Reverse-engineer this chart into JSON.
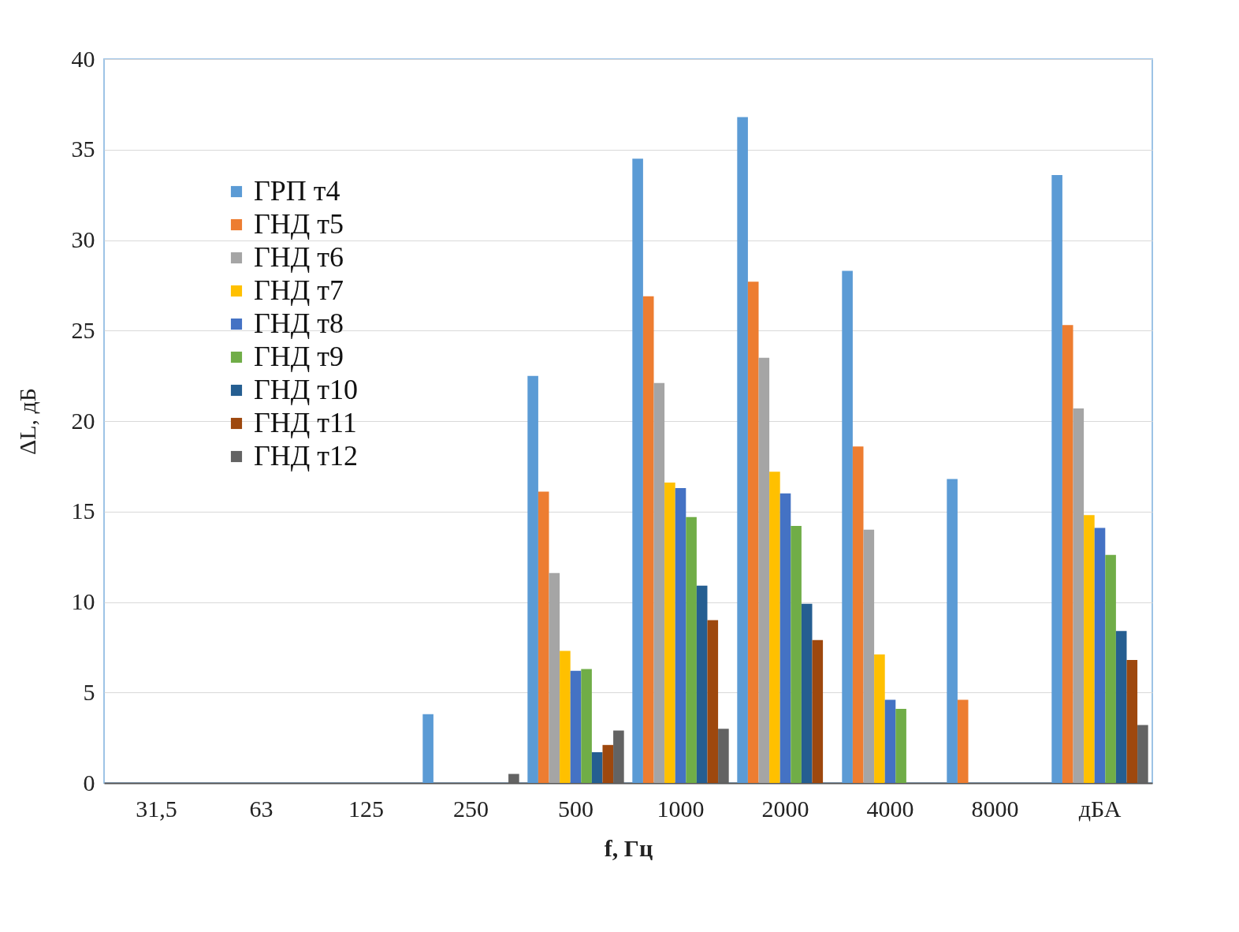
{
  "chart_data": {
    "type": "bar",
    "xlabel": "f, Гц",
    "ylabel": "ΔL, дБ",
    "categories": [
      "31,5",
      "63",
      "125",
      "250",
      "500",
      "1000",
      "2000",
      "4000",
      "8000",
      "дБА"
    ],
    "series": [
      {
        "name": "ГРП т4",
        "color": "#5b9bd5",
        "values": [
          0,
          0,
          0,
          3.8,
          22.5,
          34.5,
          36.8,
          28.3,
          16.8,
          33.6
        ]
      },
      {
        "name": "ГНД т5",
        "color": "#ed7d31",
        "values": [
          0,
          0,
          0,
          0,
          16.1,
          26.9,
          27.7,
          18.6,
          4.6,
          25.3
        ]
      },
      {
        "name": "ГНД т6",
        "color": "#a5a5a5",
        "values": [
          0,
          0,
          0,
          0,
          11.6,
          22.1,
          23.5,
          14.0,
          0,
          20.7
        ]
      },
      {
        "name": "ГНД т7",
        "color": "#ffc000",
        "values": [
          0,
          0,
          0,
          0,
          7.3,
          16.6,
          17.2,
          7.1,
          0,
          14.8
        ]
      },
      {
        "name": "ГНД т8",
        "color": "#4472c4",
        "values": [
          0,
          0,
          0,
          0,
          6.2,
          16.3,
          16.0,
          4.6,
          0,
          14.1
        ]
      },
      {
        "name": "ГНД т9",
        "color": "#70ad47",
        "values": [
          0,
          0,
          0,
          0,
          6.3,
          14.7,
          14.2,
          4.1,
          0,
          12.6
        ]
      },
      {
        "name": "ГНД т10",
        "color": "#255e91",
        "values": [
          0,
          0,
          0,
          0,
          1.7,
          10.9,
          9.9,
          0,
          0,
          8.4
        ]
      },
      {
        "name": "ГНД т11",
        "color": "#9e480e",
        "values": [
          0,
          0,
          0,
          0,
          2.1,
          9.0,
          7.9,
          0,
          0,
          6.8
        ]
      },
      {
        "name": "ГНД т12",
        "color": "#636363",
        "values": [
          0,
          0,
          0,
          0.5,
          2.9,
          3.0,
          0,
          0,
          0,
          3.2
        ]
      }
    ],
    "ylim": [
      0,
      40
    ],
    "yticks": [
      0,
      5,
      10,
      15,
      20,
      25,
      30,
      35,
      40
    ],
    "grid": "y",
    "legend": "top left"
  }
}
